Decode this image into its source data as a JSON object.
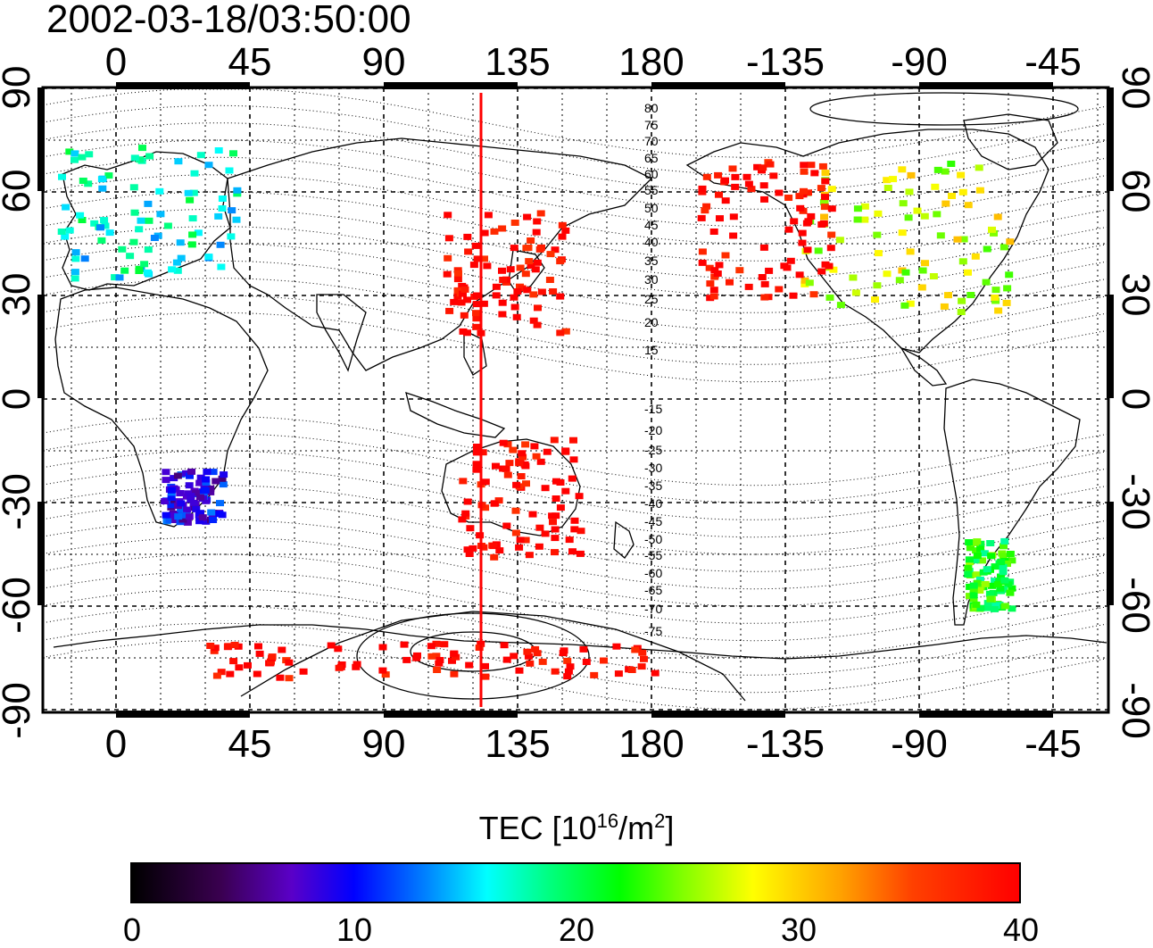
{
  "timestamp": "2002-03-18/03:50:00",
  "map": {
    "lon_top_labels": [
      "0",
      "45",
      "90",
      "135",
      "180",
      "-135",
      "-90",
      "-45"
    ],
    "lon_bottom_labels": [
      "0",
      "45",
      "90",
      "135",
      "180",
      "-135",
      "-90",
      "-45"
    ],
    "lat_left_labels": [
      "90",
      "60",
      "30",
      "0",
      "-30",
      "-60",
      "-90"
    ],
    "lat_right_labels": [
      "90",
      "60",
      "30",
      "0",
      "-30",
      "-60",
      "-90"
    ],
    "magnetic_lat_labels_north": [
      "80",
      "75",
      "70",
      "65",
      "60",
      "55",
      "50",
      "45",
      "40",
      "35",
      "30",
      "25",
      "20",
      "15"
    ],
    "magnetic_lat_labels_south": [
      "-15",
      "-20",
      "-25",
      "-30",
      "-35",
      "-40",
      "-45",
      "-50",
      "-55",
      "-60",
      "-65",
      "-70",
      "-75"
    ],
    "marker_line_longitude": 123,
    "marker_line_color": "#ff0000"
  },
  "colorbar": {
    "title_main": "TEC  [10",
    "title_sup1": "16",
    "title_mid": "/m",
    "title_sup2": "2",
    "title_end": "]",
    "ticks": [
      "0",
      "10",
      "20",
      "30",
      "40"
    ],
    "range": [
      0,
      40
    ]
  },
  "tec_regions": [
    {
      "name": "europe",
      "lon": [
        -20,
        40
      ],
      "lat": [
        35,
        75
      ],
      "tec": 17
    },
    {
      "name": "east-asia-japan",
      "lon": [
        110,
        150
      ],
      "lat": [
        20,
        55
      ],
      "tec": 40
    },
    {
      "name": "north-america",
      "lon": [
        -130,
        -60
      ],
      "lat": [
        25,
        70
      ],
      "tec": 27
    },
    {
      "name": "alaska-west-coast",
      "lon": [
        -165,
        -120
      ],
      "lat": [
        30,
        70
      ],
      "tec": 40
    },
    {
      "name": "south-africa",
      "lon": [
        15,
        35
      ],
      "lat": [
        -35,
        -20
      ],
      "tec": 9
    },
    {
      "name": "australia",
      "lon": [
        115,
        155
      ],
      "lat": [
        -45,
        -10
      ],
      "tec": 40
    },
    {
      "name": "south-america-south",
      "lon": [
        -75,
        -60
      ],
      "lat": [
        -60,
        -40
      ],
      "tec": 22
    },
    {
      "name": "antarctica-ring",
      "lon": [
        30,
        180
      ],
      "lat": [
        -80,
        -70
      ],
      "tec": 40
    }
  ]
}
